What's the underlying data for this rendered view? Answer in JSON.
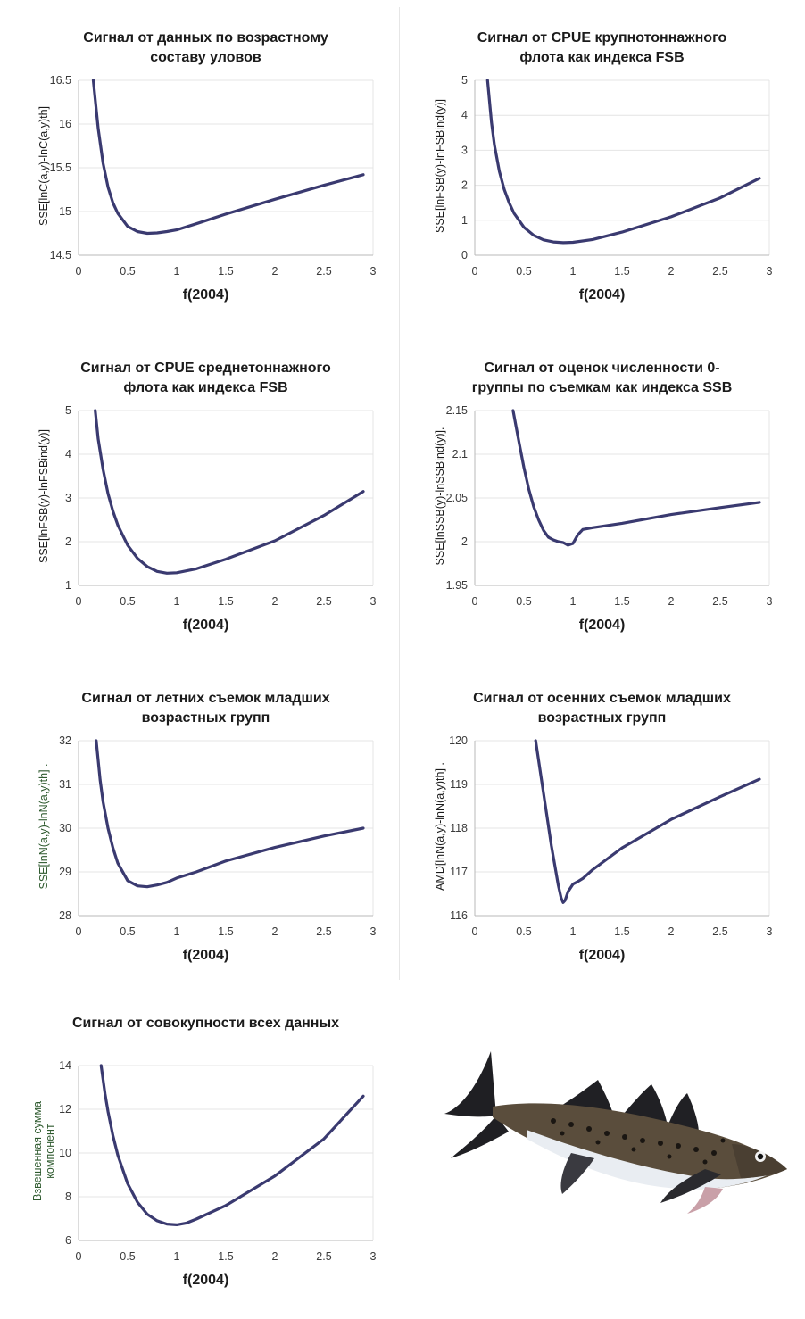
{
  "chart_data": [
    {
      "type": "line",
      "title": "Сигнал от данных по возрастному\nсоставу уловов",
      "xlabel": "f(2004)",
      "ylabel": "SSE[lnC(a,y)-lnC(a,y)th]",
      "ylabel_color": "#1b1b1b",
      "xlim": [
        0,
        3
      ],
      "ylim": [
        14.5,
        16.5
      ],
      "xticks": [
        "0",
        "0.5",
        "1",
        "1.5",
        "2",
        "2.5",
        "3"
      ],
      "yticks": [
        "14.5",
        "15",
        "15.5",
        "16",
        "16.5"
      ],
      "ytick_values": [
        14.5,
        15,
        15.5,
        16,
        16.5
      ],
      "grid": "horizontal",
      "series": [
        {
          "x": [
            0.15,
            0.2,
            0.25,
            0.3,
            0.35,
            0.4,
            0.5,
            0.6,
            0.7,
            0.8,
            0.9,
            1.0,
            1.2,
            1.5,
            2.0,
            2.5,
            2.9
          ],
          "y": [
            16.5,
            15.95,
            15.55,
            15.28,
            15.1,
            14.98,
            14.83,
            14.77,
            14.75,
            14.755,
            14.77,
            14.79,
            14.86,
            14.97,
            15.14,
            15.3,
            15.42
          ]
        }
      ]
    },
    {
      "type": "line",
      "title": "Сигнал от CPUE крупнотоннажного\nфлота как индекса FSB",
      "xlabel": "f(2004)",
      "ylabel": "SSE[lnFSB(y)-lnFSBind(y)]",
      "ylabel_color": "#1b1b1b",
      "xlim": [
        0,
        3
      ],
      "ylim": [
        0,
        5
      ],
      "xticks": [
        "0",
        "0.5",
        "1",
        "1.5",
        "2",
        "2.5",
        "3"
      ],
      "yticks": [
        "0",
        "1",
        "2",
        "3",
        "4",
        "5"
      ],
      "ytick_values": [
        0,
        1,
        2,
        3,
        4,
        5
      ],
      "grid": "horizontal",
      "series": [
        {
          "x": [
            0.13,
            0.17,
            0.2,
            0.25,
            0.3,
            0.35,
            0.4,
            0.5,
            0.6,
            0.7,
            0.8,
            0.9,
            1.0,
            1.2,
            1.5,
            2.0,
            2.5,
            2.9
          ],
          "y": [
            5.0,
            3.8,
            3.15,
            2.4,
            1.88,
            1.5,
            1.2,
            0.8,
            0.57,
            0.44,
            0.38,
            0.36,
            0.37,
            0.45,
            0.66,
            1.1,
            1.64,
            2.2
          ]
        }
      ]
    },
    {
      "type": "line",
      "title": "Сигнал от CPUE среднетоннажного\nфлота как индекса FSB",
      "xlabel": "f(2004)",
      "ylabel": "SSE[lnFSB(y)-lnFSBind(y)]",
      "ylabel_color": "#1b1b1b",
      "xlim": [
        0,
        3
      ],
      "ylim": [
        1,
        5
      ],
      "xticks": [
        "0",
        "0.5",
        "1",
        "1.5",
        "2",
        "2.5",
        "3"
      ],
      "yticks": [
        "1",
        "2",
        "3",
        "4",
        "5"
      ],
      "ytick_values": [
        1,
        2,
        3,
        4,
        5
      ],
      "grid": "horizontal",
      "series": [
        {
          "x": [
            0.17,
            0.2,
            0.25,
            0.3,
            0.35,
            0.4,
            0.5,
            0.6,
            0.7,
            0.8,
            0.9,
            1.0,
            1.2,
            1.5,
            2.0,
            2.5,
            2.9
          ],
          "y": [
            5.0,
            4.35,
            3.65,
            3.1,
            2.7,
            2.38,
            1.92,
            1.62,
            1.43,
            1.32,
            1.28,
            1.29,
            1.38,
            1.6,
            2.02,
            2.6,
            3.15
          ]
        }
      ]
    },
    {
      "type": "line",
      "title": "Сигнал от оценок численности 0-\nгруппы по съемкам как индекса SSB",
      "xlabel": "f(2004)",
      "ylabel": "SSE[lnSSB(y)-lnSSBind(y)].",
      "ylabel_color": "#1b1b1b",
      "xlim": [
        0,
        3
      ],
      "ylim": [
        1.95,
        2.15
      ],
      "xticks": [
        "0",
        "0.5",
        "1",
        "1.5",
        "2",
        "2.5",
        "3"
      ],
      "yticks": [
        "1.95",
        "2",
        "2.05",
        "2.1",
        "2.15"
      ],
      "ytick_values": [
        1.95,
        2.0,
        2.05,
        2.1,
        2.15
      ],
      "grid": "horizontal",
      "series": [
        {
          "x": [
            0.39,
            0.45,
            0.5,
            0.55,
            0.6,
            0.65,
            0.7,
            0.75,
            0.8,
            0.85,
            0.9,
            0.95,
            1.0,
            1.05,
            1.1,
            1.2,
            1.5,
            2.0,
            2.5,
            2.9
          ],
          "y": [
            2.15,
            2.114,
            2.085,
            2.06,
            2.04,
            2.025,
            2.013,
            2.005,
            2.002,
            2.0,
            1.999,
            1.996,
            1.998,
            2.008,
            2.014,
            2.016,
            2.021,
            2.031,
            2.039,
            2.045
          ]
        }
      ]
    },
    {
      "type": "line",
      "title": "Сигнал от летних съемок младших\nвозрастных групп",
      "xlabel": "f(2004)",
      "ylabel": "SSE[lnN(a,y)-lnN(a,y)th] .",
      "ylabel_color": "#2e5a2e",
      "xlim": [
        0,
        3
      ],
      "ylim": [
        28,
        32
      ],
      "xticks": [
        "0",
        "0.5",
        "1",
        "1.5",
        "2",
        "2.5",
        "3"
      ],
      "yticks": [
        "28",
        "29",
        "30",
        "31",
        "32"
      ],
      "ytick_values": [
        28,
        29,
        30,
        31,
        32
      ],
      "grid": "horizontal",
      "series": [
        {
          "x": [
            0.18,
            0.22,
            0.25,
            0.3,
            0.35,
            0.4,
            0.5,
            0.6,
            0.7,
            0.8,
            0.9,
            1.0,
            1.2,
            1.5,
            2.0,
            2.5,
            2.9
          ],
          "y": [
            32.0,
            31.1,
            30.6,
            30.0,
            29.55,
            29.2,
            28.8,
            28.68,
            28.66,
            28.7,
            28.76,
            28.86,
            29.0,
            29.25,
            29.56,
            29.82,
            30.0
          ]
        }
      ]
    },
    {
      "type": "line",
      "title": "Сигнал от осенних съемок младших\nвозрастных групп",
      "xlabel": "f(2004)",
      "ylabel": "AMD[lnN(a,y)-lnN(a,y)th] .",
      "ylabel_color": "#1b1b1b",
      "xlim": [
        0,
        3
      ],
      "ylim": [
        116,
        120
      ],
      "xticks": [
        "0",
        "0.5",
        "1",
        "1.5",
        "2",
        "2.5",
        "3"
      ],
      "yticks": [
        "116",
        "117",
        "118",
        "119",
        "120"
      ],
      "ytick_values": [
        116,
        117,
        118,
        119,
        120
      ],
      "grid": "horizontal",
      "series": [
        {
          "x": [
            0.62,
            0.7,
            0.78,
            0.85,
            0.88,
            0.9,
            0.92,
            0.95,
            1.0,
            1.05,
            1.1,
            1.2,
            1.5,
            2.0,
            2.5,
            2.9
          ],
          "y": [
            120.0,
            118.8,
            117.6,
            116.7,
            116.4,
            116.3,
            116.35,
            116.55,
            116.72,
            116.78,
            116.85,
            117.05,
            117.55,
            118.2,
            118.72,
            119.12
          ]
        }
      ]
    },
    {
      "type": "line",
      "title": "Сигнал от совокупности всех данных",
      "xlabel": "f(2004)",
      "ylabel": "Взвешенная сумма\nкомпонент",
      "ylabel_color": "#2e5a2e",
      "xlim": [
        0,
        3
      ],
      "ylim": [
        6,
        14
      ],
      "xticks": [
        "0",
        "0.5",
        "1",
        "1.5",
        "2",
        "2.5",
        "3"
      ],
      "yticks": [
        "6",
        "8",
        "10",
        "12",
        "14"
      ],
      "ytick_values": [
        6,
        8,
        10,
        12,
        14
      ],
      "grid": "horizontal",
      "series": [
        {
          "x": [
            0.23,
            0.27,
            0.3,
            0.35,
            0.4,
            0.5,
            0.6,
            0.7,
            0.8,
            0.9,
            1.0,
            1.1,
            1.2,
            1.5,
            2.0,
            2.5,
            2.9
          ],
          "y": [
            14.0,
            12.7,
            11.9,
            10.8,
            9.9,
            8.6,
            7.75,
            7.2,
            6.9,
            6.75,
            6.72,
            6.8,
            6.98,
            7.6,
            8.95,
            10.65,
            12.6
          ]
        }
      ]
    }
  ],
  "style": {
    "line_color": "#3a3a70",
    "grid_color": "#e4e4e4",
    "axis_color": "#b8b8b8"
  }
}
